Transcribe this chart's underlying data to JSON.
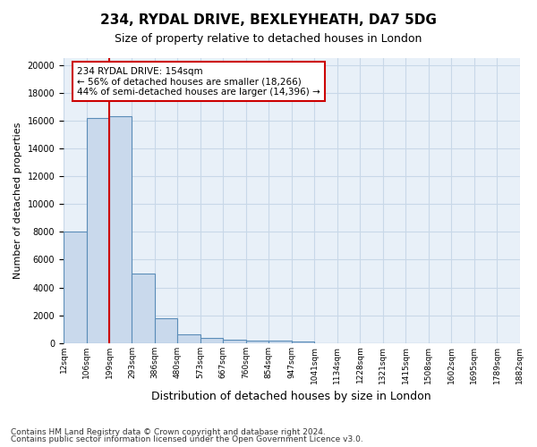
{
  "title1": "234, RYDAL DRIVE, BEXLEYHEATH, DA7 5DG",
  "title2": "Size of property relative to detached houses in London",
  "xlabel": "Distribution of detached houses by size in London",
  "ylabel": "Number of detached properties",
  "footer1": "Contains HM Land Registry data © Crown copyright and database right 2024.",
  "footer2": "Contains public sector information licensed under the Open Government Licence v3.0.",
  "annotation_line1": "234 RYDAL DRIVE: 154sqm",
  "annotation_line2": "← 56% of detached houses are smaller (18,266)",
  "annotation_line3": "44% of semi-detached houses are larger (14,396) →",
  "bin_labels": [
    "12sqm",
    "106sqm",
    "199sqm",
    "293sqm",
    "386sqm",
    "480sqm",
    "573sqm",
    "667sqm",
    "760sqm",
    "854sqm",
    "947sqm",
    "1041sqm",
    "1134sqm",
    "1228sqm",
    "1321sqm",
    "1415sqm",
    "1508sqm",
    "1602sqm",
    "1695sqm",
    "1789sqm",
    "1882sqm"
  ],
  "bar_values": [
    8050,
    16200,
    16300,
    5000,
    1800,
    600,
    350,
    250,
    200,
    150,
    100,
    0,
    0,
    0,
    0,
    0,
    0,
    0,
    0,
    0
  ],
  "bar_color": "#c9d9ec",
  "bar_edge_color": "#5b8db8",
  "bar_edge_width": 0.8,
  "vline_color": "#cc0000",
  "vline_x": 1.52,
  "annotation_box_color": "#ffffff",
  "annotation_box_edge_color": "#cc0000",
  "ylim": [
    0,
    20500
  ],
  "yticks": [
    0,
    2000,
    4000,
    6000,
    8000,
    10000,
    12000,
    14000,
    16000,
    18000,
    20000
  ],
  "grid_color": "#c8d8e8",
  "background_color": "#e8f0f8"
}
